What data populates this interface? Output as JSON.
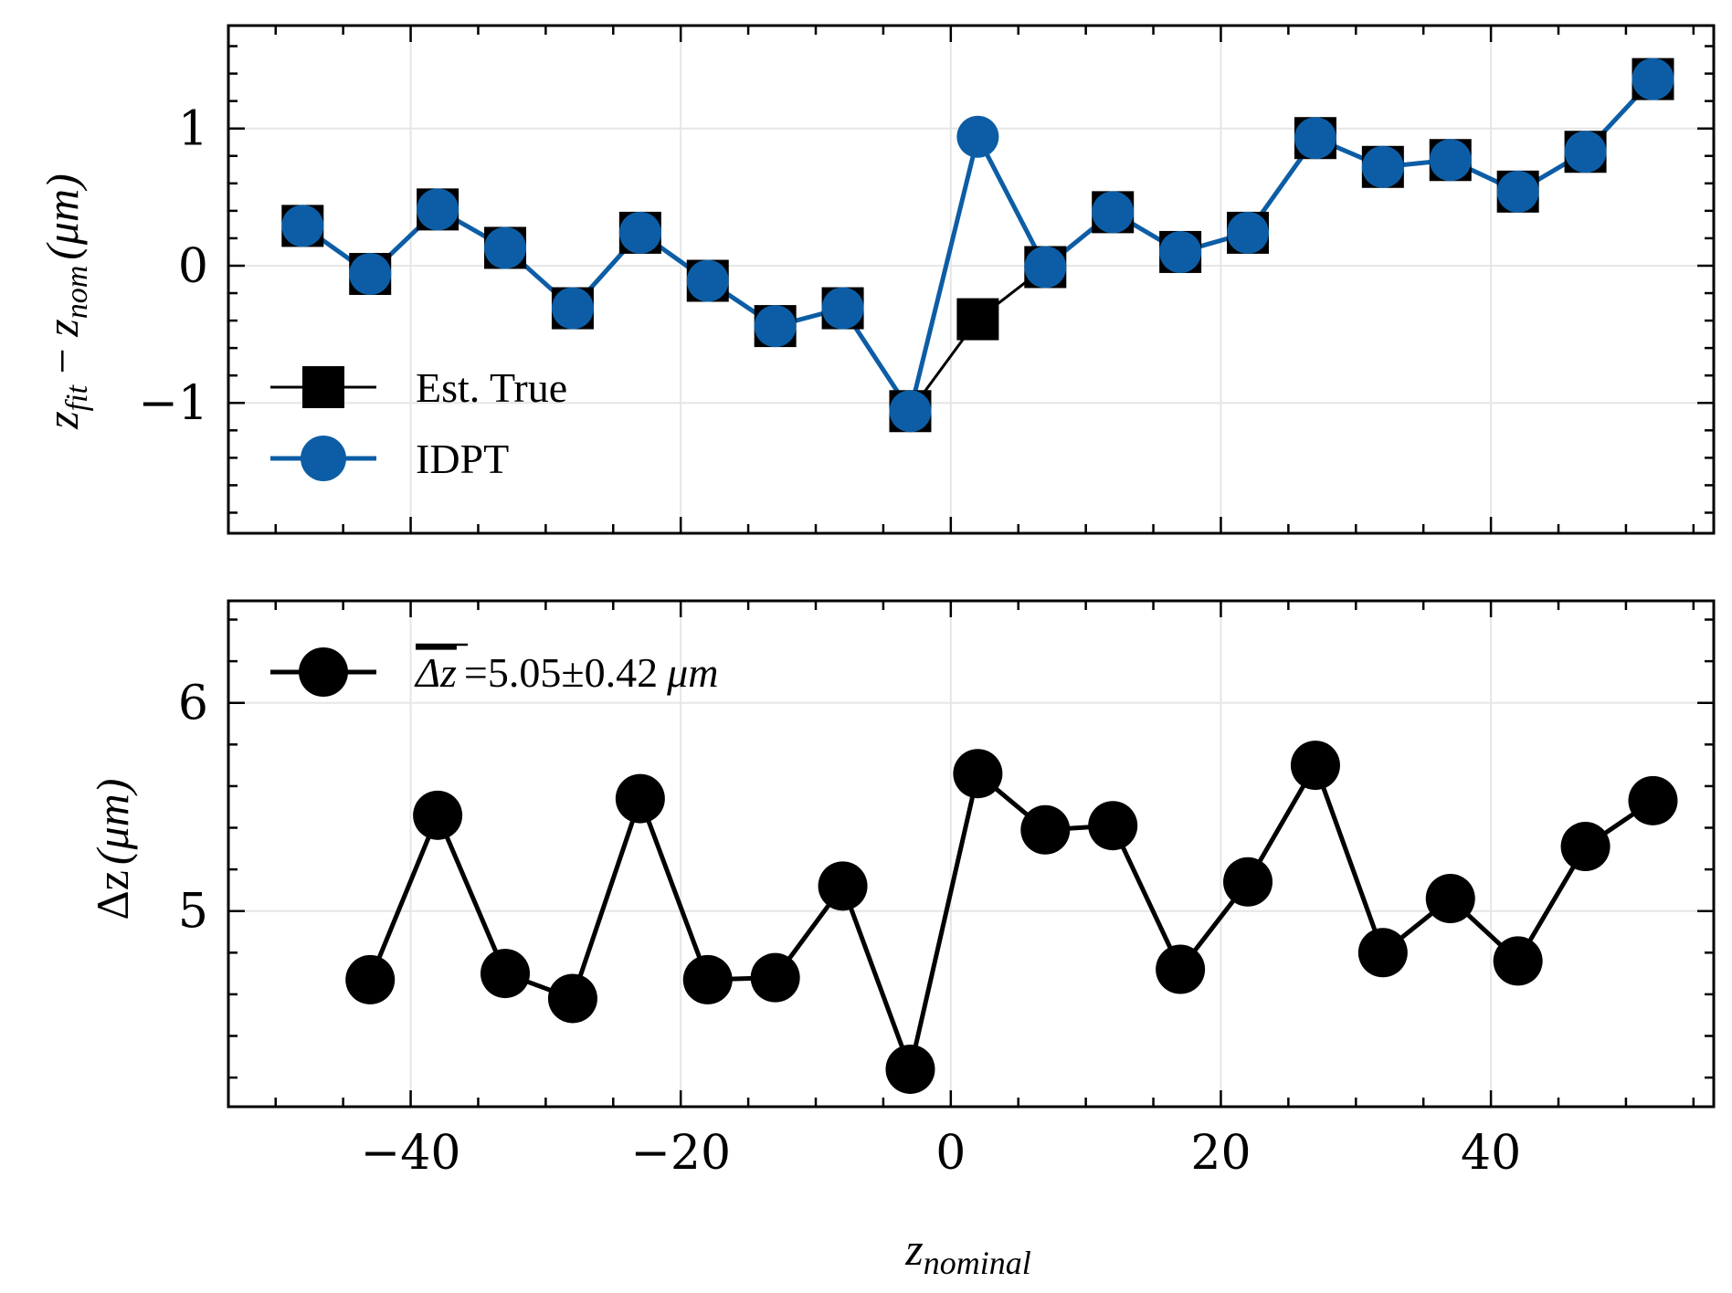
{
  "chart_data": [
    {
      "type": "line",
      "ylabel": {
        "main": "z",
        "sub1": "fit",
        "minus": " − ",
        "main2": "z",
        "sub2": "nom",
        "unit": "(μm)"
      },
      "xlim": [
        -53.5,
        56.5
      ],
      "ylim": [
        -1.95,
        1.75
      ],
      "yticks": [
        -1,
        0,
        1
      ],
      "ytick_labels": [
        "−1",
        "0",
        "1"
      ],
      "grid": true,
      "legend_position": "lower-left",
      "series": [
        {
          "name": "Est. True",
          "color": "#000000",
          "marker": "square",
          "x": [
            -48,
            -43,
            -38,
            -33,
            -28,
            -23,
            -18,
            -13,
            -8,
            -3,
            2,
            7,
            12,
            17,
            22,
            27,
            32,
            37,
            42,
            47,
            52
          ],
          "y": [
            0.29,
            -0.06,
            0.41,
            0.13,
            -0.31,
            0.24,
            -0.11,
            -0.44,
            -0.31,
            -1.06,
            -0.39,
            -0.01,
            0.39,
            0.1,
            0.24,
            0.93,
            0.72,
            0.77,
            0.54,
            0.83,
            1.36
          ]
        },
        {
          "name": "IDPT",
          "color": "#0c5da5",
          "marker": "circle",
          "x": [
            -48,
            -43,
            -38,
            -33,
            -28,
            -23,
            -18,
            -13,
            -8,
            -3,
            2,
            7,
            12,
            17,
            22,
            27,
            32,
            37,
            42,
            47,
            52
          ],
          "y": [
            0.29,
            -0.06,
            0.41,
            0.13,
            -0.31,
            0.24,
            -0.11,
            -0.44,
            -0.31,
            -1.06,
            0.94,
            -0.01,
            0.39,
            0.1,
            0.24,
            0.93,
            0.72,
            0.77,
            0.54,
            0.83,
            1.36
          ]
        }
      ]
    },
    {
      "type": "line",
      "ylabel": {
        "main": "Δz",
        "unit": "(μm)"
      },
      "xlabel": {
        "main": "z",
        "sub": "nominal"
      },
      "xlim": [
        -53.5,
        56.5
      ],
      "ylim": [
        4.06,
        6.49
      ],
      "yticks": [
        5,
        6
      ],
      "ytick_labels": [
        "5",
        "6"
      ],
      "xticks": [
        -40,
        -20,
        0,
        20,
        40
      ],
      "xtick_labels": [
        "−40",
        "−20",
        "0",
        "20",
        "40"
      ],
      "grid": true,
      "legend_position": "upper-left",
      "series": [
        {
          "name": "Δz =5.05±0.42 μm",
          "legend_parts": {
            "overline": "Δz",
            "rest": "=5.05±0.42",
            "unit": "μm"
          },
          "color": "#000000",
          "marker": "circle",
          "x": [
            -43,
            -38,
            -33,
            -28,
            -23,
            -18,
            -13,
            -8,
            -3,
            2,
            7,
            12,
            17,
            22,
            27,
            32,
            37,
            42,
            47,
            52
          ],
          "y": [
            4.67,
            5.46,
            4.7,
            4.58,
            5.54,
            4.67,
            4.68,
            5.12,
            4.24,
            5.66,
            5.39,
            5.41,
            4.72,
            5.14,
            5.7,
            4.8,
            5.06,
            4.76,
            5.31,
            5.53
          ]
        }
      ]
    }
  ]
}
